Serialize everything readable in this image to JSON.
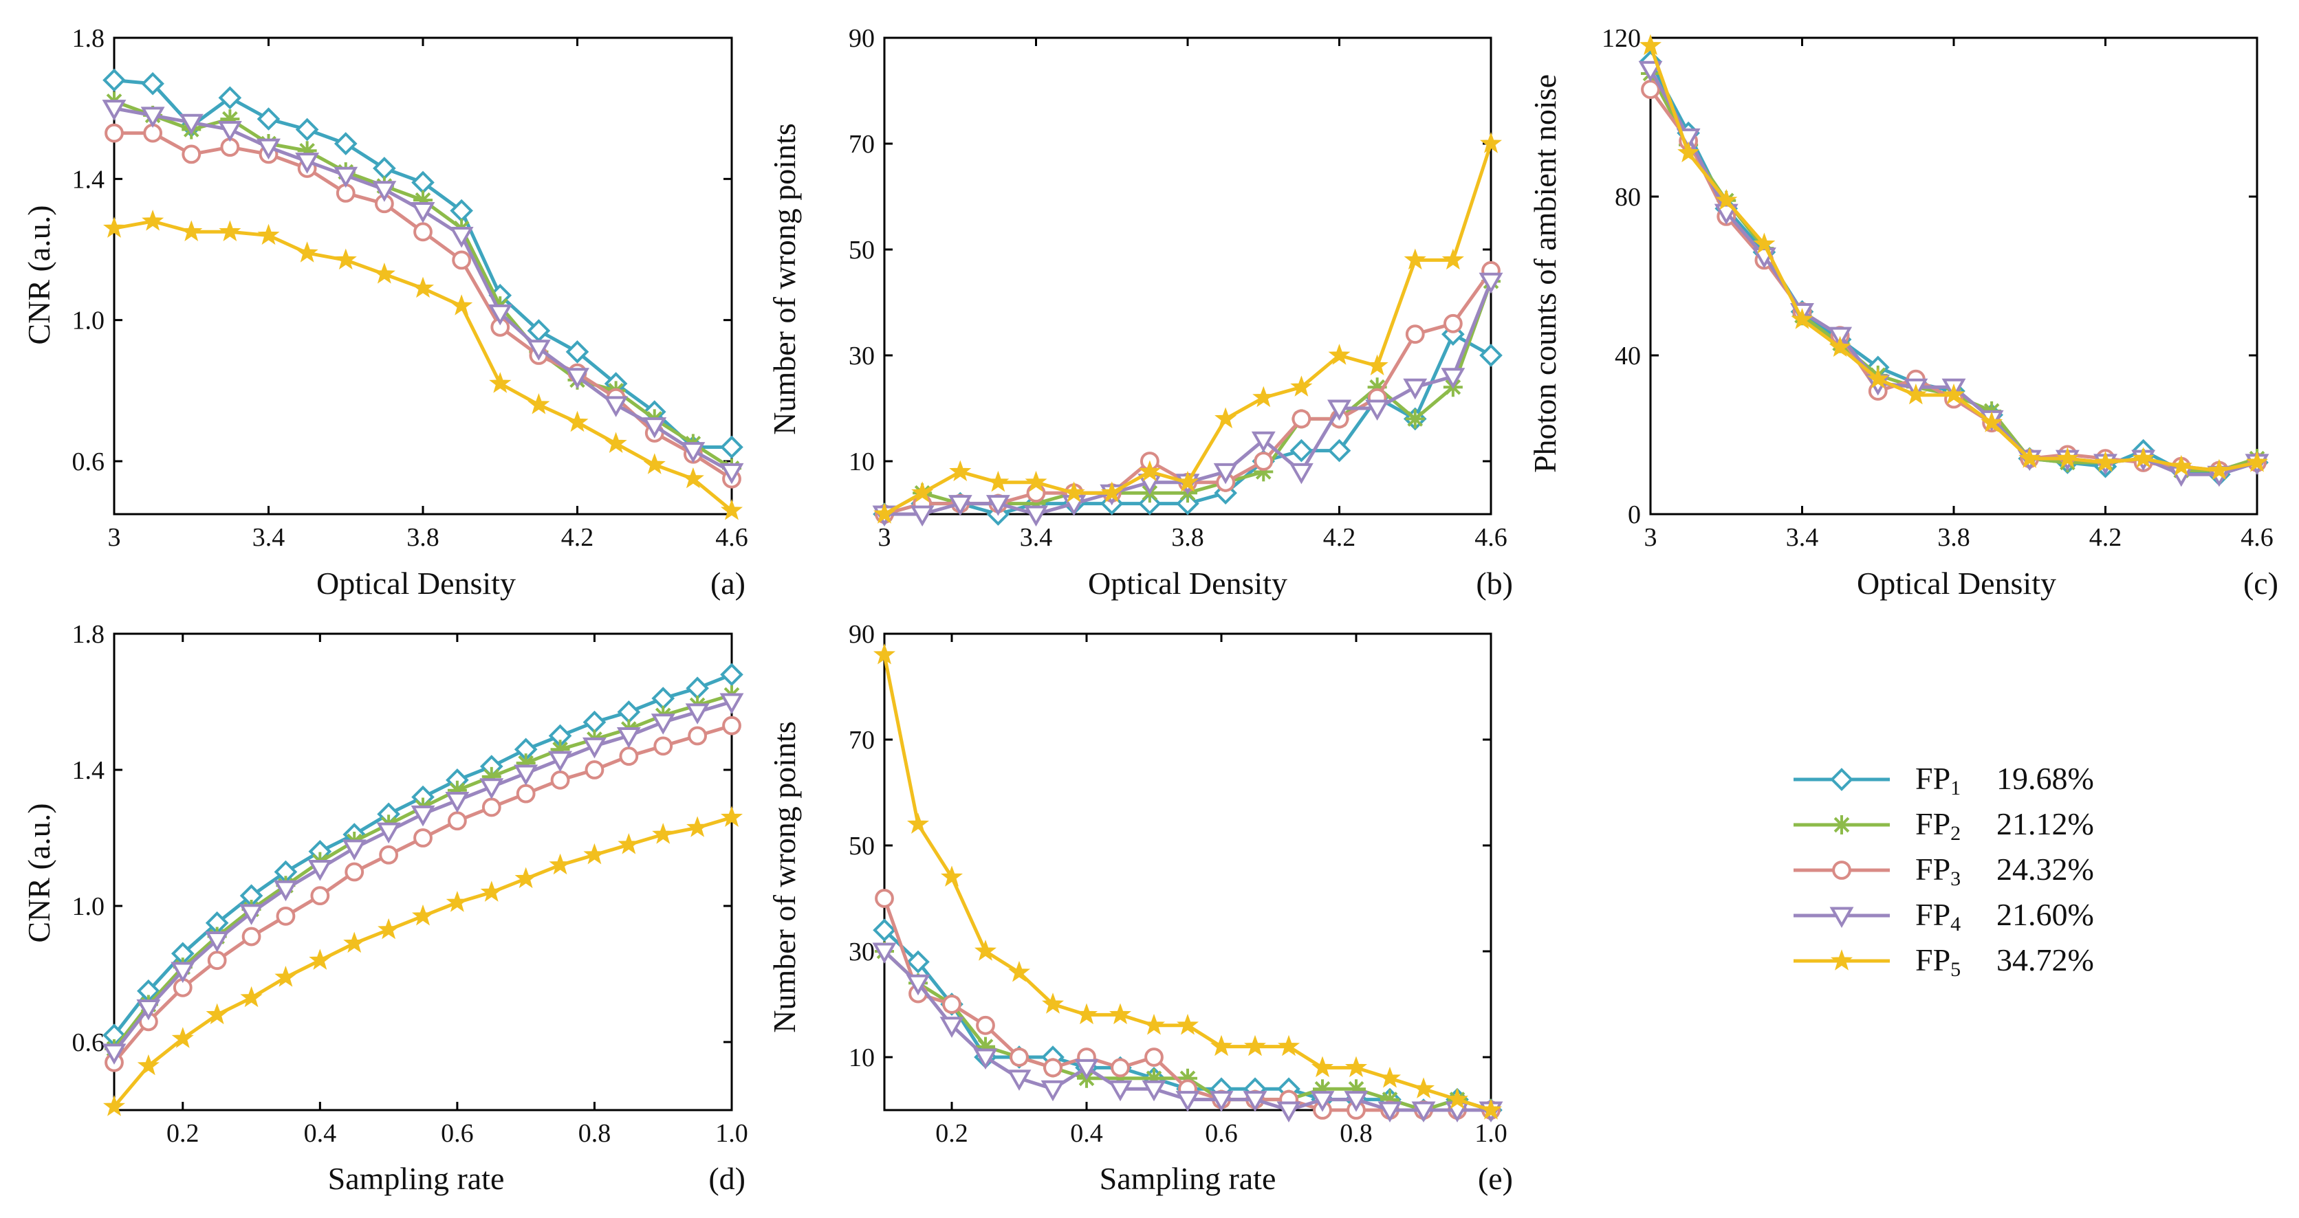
{
  "chart_data": [
    {
      "id": "a",
      "type": "line",
      "panel_label": "(a)",
      "xlabel": "Optical Density",
      "ylabel": "CNR (a.u.)",
      "xlim": [
        3,
        4.6
      ],
      "ylim": [
        0.45,
        1.8
      ],
      "xticks": [
        3,
        3.4,
        3.8,
        4.2,
        4.6
      ],
      "xtick_labels": [
        "3",
        "3.4",
        "3.8",
        "4.2",
        "4.6"
      ],
      "yticks": [
        0.6,
        1.0,
        1.4,
        1.8
      ],
      "ytick_labels": [
        "0.6",
        "1.0",
        "1.4",
        "1.8"
      ],
      "x": [
        3.0,
        3.1,
        3.2,
        3.3,
        3.4,
        3.5,
        3.6,
        3.7,
        3.8,
        3.9,
        4.0,
        4.1,
        4.2,
        4.3,
        4.4,
        4.5,
        4.6
      ],
      "series": [
        {
          "name": "FP1",
          "values": [
            1.68,
            1.67,
            1.55,
            1.63,
            1.57,
            1.54,
            1.5,
            1.43,
            1.39,
            1.31,
            1.07,
            0.97,
            0.91,
            0.82,
            0.74,
            0.64,
            0.64
          ]
        },
        {
          "name": "FP2",
          "values": [
            1.62,
            1.58,
            1.54,
            1.57,
            1.5,
            1.48,
            1.42,
            1.38,
            1.34,
            1.26,
            1.04,
            0.91,
            0.83,
            0.8,
            0.72,
            0.65,
            0.58
          ]
        },
        {
          "name": "FP3",
          "values": [
            1.53,
            1.53,
            1.47,
            1.49,
            1.47,
            1.43,
            1.36,
            1.33,
            1.25,
            1.17,
            0.98,
            0.9,
            0.85,
            0.78,
            0.68,
            0.62,
            0.55
          ]
        },
        {
          "name": "FP4",
          "values": [
            1.6,
            1.58,
            1.56,
            1.54,
            1.49,
            1.45,
            1.41,
            1.37,
            1.31,
            1.24,
            1.02,
            0.92,
            0.84,
            0.76,
            0.7,
            0.63,
            0.57
          ]
        },
        {
          "name": "FP5",
          "values": [
            1.26,
            1.28,
            1.25,
            1.25,
            1.24,
            1.19,
            1.17,
            1.13,
            1.09,
            1.04,
            0.82,
            0.76,
            0.71,
            0.65,
            0.59,
            0.55,
            0.46
          ]
        }
      ]
    },
    {
      "id": "b",
      "type": "line",
      "panel_label": "(b)",
      "xlabel": "Optical Density",
      "ylabel": "Number of wrong points",
      "xlim": [
        3,
        4.6
      ],
      "ylim": [
        0,
        90
      ],
      "xticks": [
        3,
        3.4,
        3.8,
        4.2,
        4.6
      ],
      "xtick_labels": [
        "3",
        "3.4",
        "3.8",
        "4.2",
        "4.6"
      ],
      "yticks": [
        10,
        30,
        50,
        70,
        90
      ],
      "ytick_labels": [
        "10",
        "30",
        "50",
        "70",
        "90"
      ],
      "x": [
        3.0,
        3.1,
        3.2,
        3.3,
        3.4,
        3.5,
        3.6,
        3.7,
        3.8,
        3.9,
        4.0,
        4.1,
        4.2,
        4.3,
        4.4,
        4.5,
        4.6
      ],
      "series": [
        {
          "name": "FP1",
          "values": [
            0,
            2,
            2,
            0,
            2,
            2,
            2,
            2,
            2,
            4,
            10,
            12,
            12,
            22,
            18,
            34,
            30
          ]
        },
        {
          "name": "FP2",
          "values": [
            0,
            4,
            2,
            2,
            2,
            4,
            4,
            4,
            4,
            6,
            8,
            18,
            18,
            24,
            18,
            24,
            44
          ]
        },
        {
          "name": "FP3",
          "values": [
            0,
            2,
            2,
            2,
            4,
            4,
            4,
            10,
            6,
            6,
            10,
            18,
            18,
            22,
            34,
            36,
            46
          ]
        },
        {
          "name": "FP4",
          "values": [
            0,
            0,
            2,
            2,
            0,
            2,
            4,
            6,
            6,
            8,
            14,
            8,
            20,
            20,
            24,
            26,
            44
          ]
        },
        {
          "name": "FP5",
          "values": [
            0,
            4,
            8,
            6,
            6,
            4,
            4,
            8,
            6,
            18,
            22,
            24,
            30,
            28,
            48,
            48,
            70
          ]
        }
      ]
    },
    {
      "id": "c",
      "type": "line",
      "panel_label": "(c)",
      "xlabel": "Optical Density",
      "ylabel": "Photon counts of ambient noise",
      "xlim": [
        3,
        4.6
      ],
      "ylim": [
        0,
        120
      ],
      "xticks": [
        3,
        3.4,
        3.8,
        4.2,
        4.6
      ],
      "xtick_labels": [
        "3",
        "3.4",
        "3.8",
        "4.2",
        "4.6"
      ],
      "yticks": [
        0,
        40,
        80,
        120
      ],
      "ytick_labels": [
        "0",
        "40",
        "80",
        "120"
      ],
      "x": [
        3.0,
        3.1,
        3.2,
        3.3,
        3.4,
        3.5,
        3.6,
        3.7,
        3.8,
        3.9,
        4.0,
        4.1,
        4.2,
        4.3,
        4.4,
        4.5,
        4.6
      ],
      "series": [
        {
          "name": "FP1",
          "values": [
            114,
            96,
            77,
            66,
            51,
            44,
            37,
            33,
            31,
            25,
            14,
            13,
            12,
            16,
            11,
            10,
            13
          ]
        },
        {
          "name": "FP2",
          "values": [
            111,
            93,
            79,
            67,
            50,
            43,
            35,
            32,
            30,
            26,
            14,
            13,
            13,
            14,
            11,
            11,
            14
          ]
        },
        {
          "name": "FP3",
          "values": [
            107,
            94,
            75,
            64,
            51,
            45,
            31,
            34,
            29,
            23,
            14,
            15,
            14,
            13,
            12,
            11,
            13
          ]
        },
        {
          "name": "FP4",
          "values": [
            112,
            95,
            76,
            65,
            51,
            45,
            33,
            32,
            32,
            24,
            14,
            14,
            13,
            14,
            10,
            10,
            13
          ]
        },
        {
          "name": "FP5",
          "values": [
            118,
            91,
            79,
            68,
            49,
            42,
            34,
            30,
            30,
            23,
            14,
            14,
            13,
            14,
            12,
            11,
            13
          ]
        }
      ]
    },
    {
      "id": "d",
      "type": "line",
      "panel_label": "(d)",
      "xlabel": "Sampling rate",
      "ylabel": "CNR (a.u.)",
      "xlim": [
        0.1,
        1.0
      ],
      "ylim": [
        0.4,
        1.8
      ],
      "xticks": [
        0.2,
        0.4,
        0.6,
        0.8,
        1.0
      ],
      "xtick_labels": [
        "0.2",
        "0.4",
        "0.6",
        "0.8",
        "1.0"
      ],
      "yticks": [
        0.6,
        1.0,
        1.4,
        1.8
      ],
      "ytick_labels": [
        "0.6",
        "1.0",
        "1.4",
        "1.8"
      ],
      "x": [
        0.1,
        0.15,
        0.2,
        0.25,
        0.3,
        0.35,
        0.4,
        0.45,
        0.5,
        0.55,
        0.6,
        0.65,
        0.7,
        0.75,
        0.8,
        0.85,
        0.9,
        0.95,
        1.0
      ],
      "series": [
        {
          "name": "FP1",
          "values": [
            0.62,
            0.75,
            0.86,
            0.95,
            1.03,
            1.1,
            1.16,
            1.21,
            1.27,
            1.32,
            1.37,
            1.41,
            1.46,
            1.5,
            1.54,
            1.57,
            1.61,
            1.64,
            1.68
          ]
        },
        {
          "name": "FP2",
          "values": [
            0.58,
            0.71,
            0.82,
            0.91,
            0.99,
            1.06,
            1.13,
            1.19,
            1.24,
            1.29,
            1.34,
            1.38,
            1.42,
            1.46,
            1.49,
            1.52,
            1.56,
            1.59,
            1.62
          ]
        },
        {
          "name": "FP3",
          "values": [
            0.54,
            0.66,
            0.76,
            0.84,
            0.91,
            0.97,
            1.03,
            1.1,
            1.15,
            1.2,
            1.25,
            1.29,
            1.33,
            1.37,
            1.4,
            1.44,
            1.47,
            1.5,
            1.53
          ]
        },
        {
          "name": "FP4",
          "values": [
            0.57,
            0.7,
            0.81,
            0.9,
            0.98,
            1.05,
            1.11,
            1.17,
            1.22,
            1.27,
            1.31,
            1.35,
            1.39,
            1.43,
            1.47,
            1.5,
            1.54,
            1.57,
            1.6
          ]
        },
        {
          "name": "FP5",
          "values": [
            0.41,
            0.53,
            0.61,
            0.68,
            0.73,
            0.79,
            0.84,
            0.89,
            0.93,
            0.97,
            1.01,
            1.04,
            1.08,
            1.12,
            1.15,
            1.18,
            1.21,
            1.23,
            1.26
          ]
        }
      ]
    },
    {
      "id": "e",
      "type": "line",
      "panel_label": "(e)",
      "xlabel": "Sampling rate",
      "ylabel": "Number of wrong points",
      "xlim": [
        0.1,
        1.0
      ],
      "ylim": [
        0,
        90
      ],
      "xticks": [
        0.2,
        0.4,
        0.6,
        0.8,
        1.0
      ],
      "xtick_labels": [
        "0.2",
        "0.4",
        "0.6",
        "0.8",
        "1.0"
      ],
      "yticks": [
        10,
        30,
        50,
        70,
        90
      ],
      "ytick_labels": [
        "10",
        "30",
        "50",
        "70",
        "90"
      ],
      "x": [
        0.1,
        0.15,
        0.2,
        0.25,
        0.3,
        0.35,
        0.4,
        0.45,
        0.5,
        0.55,
        0.6,
        0.65,
        0.7,
        0.75,
        0.8,
        0.85,
        0.9,
        0.95,
        1.0
      ],
      "series": [
        {
          "name": "FP1",
          "values": [
            34,
            28,
            20,
            10,
            10,
            10,
            8,
            8,
            6,
            4,
            4,
            4,
            4,
            2,
            2,
            2,
            0,
            2,
            0
          ]
        },
        {
          "name": "FP2",
          "values": [
            30,
            24,
            20,
            12,
            10,
            8,
            6,
            6,
            6,
            6,
            2,
            2,
            2,
            4,
            4,
            2,
            0,
            2,
            0
          ]
        },
        {
          "name": "FP3",
          "values": [
            40,
            22,
            20,
            16,
            10,
            8,
            10,
            8,
            10,
            4,
            2,
            2,
            2,
            0,
            0,
            0,
            0,
            0,
            0
          ]
        },
        {
          "name": "FP4",
          "values": [
            30,
            24,
            16,
            10,
            6,
            4,
            8,
            4,
            4,
            2,
            2,
            2,
            0,
            2,
            2,
            0,
            0,
            0,
            0
          ]
        },
        {
          "name": "FP5",
          "values": [
            86,
            54,
            44,
            30,
            26,
            20,
            18,
            18,
            16,
            16,
            12,
            12,
            12,
            8,
            8,
            6,
            4,
            2,
            0
          ]
        }
      ]
    }
  ],
  "legend": {
    "placement": "bottom-right",
    "entries": [
      {
        "key": "FP1",
        "label_main": "FP",
        "subscript": "1",
        "value": "19.68%"
      },
      {
        "key": "FP2",
        "label_main": "FP",
        "subscript": "2",
        "value": "21.12%"
      },
      {
        "key": "FP3",
        "label_main": "FP",
        "subscript": "3",
        "value": "24.32%"
      },
      {
        "key": "FP4",
        "label_main": "FP",
        "subscript": "4",
        "value": "21.60%"
      },
      {
        "key": "FP5",
        "label_main": "FP",
        "subscript": "5",
        "value": "34.72%"
      }
    ]
  },
  "styles": {
    "FP1": {
      "color": "#3ea5be",
      "marker": "diamond-open"
    },
    "FP2": {
      "color": "#8dbb4a",
      "marker": "star-asterisk"
    },
    "FP3": {
      "color": "#d98b86",
      "marker": "circle-open"
    },
    "FP4": {
      "color": "#9a86bf",
      "marker": "triangle-down-open"
    },
    "FP5": {
      "color": "#f2bf1e",
      "marker": "star-filled"
    }
  }
}
